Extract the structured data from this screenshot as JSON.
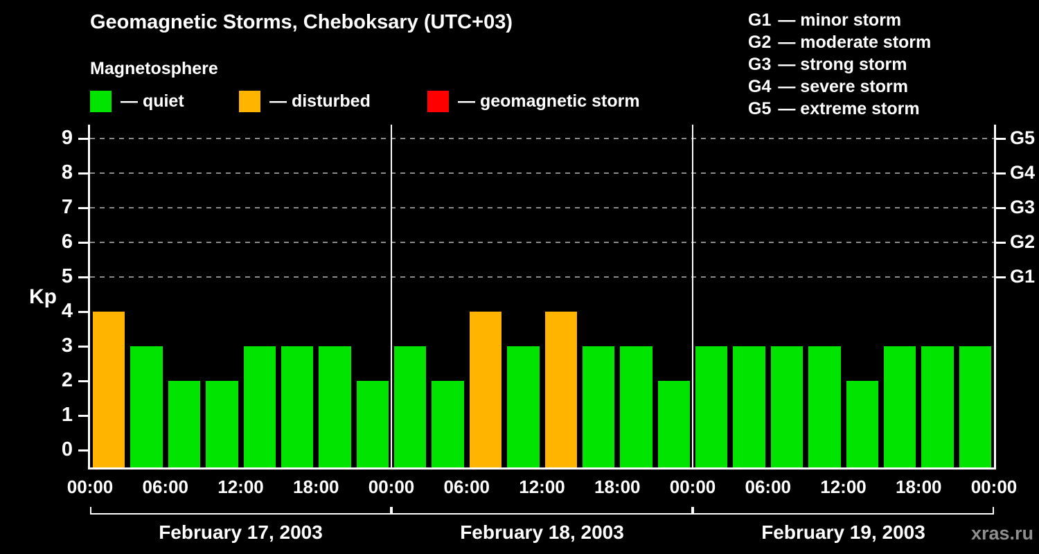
{
  "header": {
    "title": "Geomagnetic Storms, Cheboksary (UTC+03)",
    "subtitle": "Magnetosphere",
    "legend": [
      {
        "key": "quiet",
        "label": "— quiet",
        "color": "#00e400"
      },
      {
        "key": "disturbed",
        "label": "— disturbed",
        "color": "#ffb400"
      },
      {
        "key": "storm",
        "label": "— geomagnetic storm",
        "color": "#ff0000"
      }
    ],
    "storm_scale": [
      {
        "code": "G1",
        "label": "— minor storm"
      },
      {
        "code": "G2",
        "label": "— moderate storm"
      },
      {
        "code": "G3",
        "label": "— strong storm"
      },
      {
        "code": "G4",
        "label": "— severe storm"
      },
      {
        "code": "G5",
        "label": "— extreme storm"
      }
    ]
  },
  "watermark": "xras.ru",
  "chart_data": {
    "type": "bar",
    "title": "Geomagnetic Storms, Cheboksary (UTC+03)",
    "ylabel": "Kp",
    "ylim": [
      0,
      9
    ],
    "yticks": [
      0,
      1,
      2,
      3,
      4,
      5,
      6,
      7,
      8,
      9
    ],
    "grid_levels": [
      5,
      6,
      7,
      8,
      9
    ],
    "right_axis": [
      {
        "value": 5,
        "label": "G1"
      },
      {
        "value": 6,
        "label": "G2"
      },
      {
        "value": 7,
        "label": "G3"
      },
      {
        "value": 8,
        "label": "G4"
      },
      {
        "value": 9,
        "label": "G5"
      }
    ],
    "x_tick_labels": [
      "00:00",
      "06:00",
      "12:00",
      "18:00",
      "00:00",
      "06:00",
      "12:00",
      "18:00",
      "00:00",
      "06:00",
      "12:00",
      "18:00",
      "00:00"
    ],
    "bar_interval_hours": 3,
    "color_rules": {
      "quiet_max": 3,
      "disturbed_max": 4
    },
    "colors": {
      "quiet": "#00e400",
      "disturbed": "#ffb400",
      "storm": "#ff0000"
    },
    "days": [
      {
        "date": "February 17, 2003",
        "values": [
          4,
          3,
          2,
          2,
          3,
          3,
          3,
          2
        ]
      },
      {
        "date": "February 18, 2003",
        "values": [
          3,
          2,
          4,
          3,
          4,
          3,
          3,
          2
        ]
      },
      {
        "date": "February 19, 2003",
        "values": [
          3,
          3,
          3,
          3,
          2,
          3,
          3,
          3
        ]
      }
    ]
  }
}
